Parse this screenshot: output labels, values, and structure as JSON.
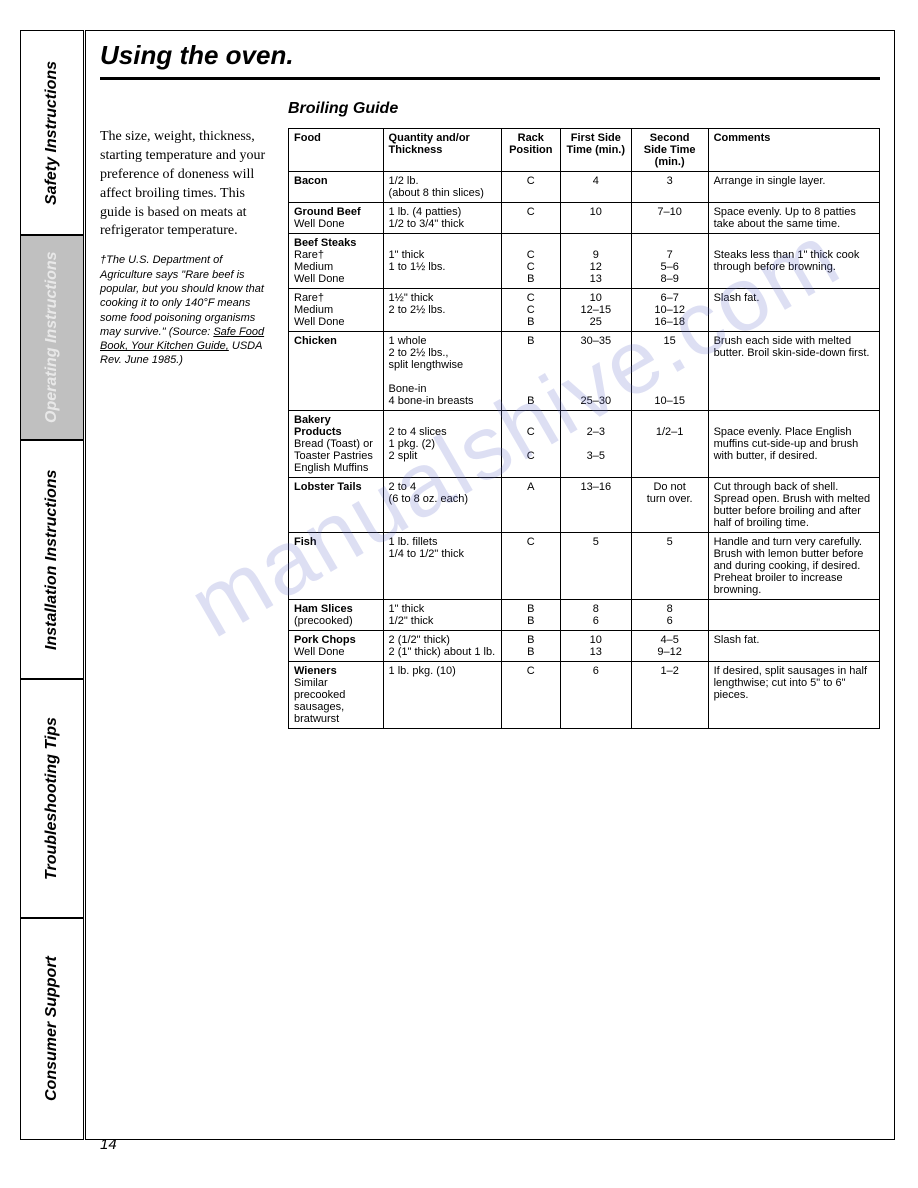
{
  "sideTabs": {
    "safety": "Safety Instructions",
    "operating": "Operating Instructions",
    "installation": "Installation Instructions",
    "troubleshooting": "Troubleshooting Tips",
    "consumer": "Consumer Support"
  },
  "title": "Using the oven.",
  "subheading": "Broiling Guide",
  "introText": "The size, weight, thickness, starting temperature and your preference of doneness will affect broiling times. This guide is based on meats at refrigerator temperature.",
  "footnotePrefix": "†The U.S. Department of Agriculture says \"Rare beef is popular, but you should know that cooking it to only 140°F means some food poisoning organisms may survive.\" (Source: ",
  "footnoteUnderline": "Safe Food Book, Your Kitchen Guide,",
  "footnoteSuffix": " USDA Rev. June 1985.)",
  "tableHeaders": {
    "food": "Food",
    "qty": "Quantity and/or Thickness",
    "rack": "Rack Position",
    "first": "First Side Time (min.)",
    "second": "Second Side Time (min.)",
    "comments": "Comments"
  },
  "rows": [
    {
      "food": "<span class='b'>Bacon</span>",
      "qty": "1/2 lb.<br>(about 8 thin slices)",
      "rack": "C",
      "first": "4",
      "second": "3",
      "comments": "Arrange in single layer."
    },
    {
      "food": "<span class='b'>Ground Beef</span><br>Well Done",
      "qty": "1 lb. (4 patties)<br>1/2 to 3/4\" thick",
      "rack": "C",
      "first": "10",
      "second": "7–10",
      "comments": "Space evenly. Up to 8 patties take about the same time."
    },
    {
      "food": "<span class='b'>Beef Steaks</span><br>Rare†<br>Medium<br>Well Done",
      "qty": "<br>1\" thick<br>1 to 1½ lbs.",
      "rack": "<br>C<br>C<br>B",
      "first": "<br>9<br>12<br>13",
      "second": "<br>7<br>5–6<br>8–9",
      "comments": "<br>Steaks less than 1\" thick cook through before browning."
    },
    {
      "food": "Rare†<br>Medium<br>Well Done",
      "qty": "1½\" thick<br>2 to 2½ lbs.",
      "rack": "C<br>C<br>B",
      "first": "10<br>12–15<br>25",
      "second": "6–7<br>10–12<br>16–18",
      "comments": "Slash fat."
    },
    {
      "food": "<span class='b'>Chicken</span>",
      "qty": "1 whole<br>2 to 2½ lbs.,<br>split lengthwise<br><br>Bone-in<br>4 bone-in breasts",
      "rack": "B<br><br><br><br><br>B",
      "first": "30–35<br><br><br><br><br>25–30",
      "second": "15<br><br><br><br><br>10–15",
      "comments": "Brush each side with melted butter. Broil skin-side-down first."
    },
    {
      "food": "<span class='b'>Bakery Products</span><br>Bread (Toast) or<br>Toaster Pastries<br>English Muffins",
      "qty": "<br>2 to 4 slices<br>1 pkg. (2)<br>2 split",
      "rack": "<br>C<br><br>C",
      "first": "<br>2–3<br><br>3–5",
      "second": "<br>1/2–1",
      "comments": "<br>Space evenly. Place English muffins cut-side-up and brush with butter, if desired."
    },
    {
      "food": "<span class='b'>Lobster Tails</span>",
      "qty": "2 to 4<br>(6 to 8 oz. each)",
      "rack": "A",
      "first": "13–16",
      "second": "Do not<br>turn over.",
      "comments": "Cut through back of shell. Spread open. Brush with melted butter before broiling and after half of broiling time."
    },
    {
      "food": "<span class='b'>Fish</span>",
      "qty": "1 lb. fillets<br>1/4 to 1/2\" thick",
      "rack": "C",
      "first": "5",
      "second": "5",
      "comments": "Handle and turn very carefully. Brush with lemon butter before and during cooking, if desired. Preheat broiler to increase browning."
    },
    {
      "food": "<span class='b'>Ham Slices</span><br>(precooked)",
      "qty": "1\" thick<br>1/2\" thick",
      "rack": "B<br>B",
      "first": "8<br>6",
      "second": "8<br>6",
      "comments": ""
    },
    {
      "food": "<span class='b'>Pork Chops</span><br>Well Done",
      "qty": "2 (1/2\" thick)<br>2 (1\" thick) about 1 lb.",
      "rack": "B<br>B",
      "first": "10<br>13",
      "second": "4–5<br>9–12",
      "comments": "Slash fat."
    },
    {
      "food": "<span class='b'>Wieners</span><br>Similar precooked<br>sausages,<br>bratwurst",
      "qty": "1 lb. pkg. (10)",
      "rack": "C",
      "first": "6",
      "second": "1–2",
      "comments": "If desired, split sausages in half lengthwise; cut into 5\" to 6\" pieces."
    }
  ],
  "pageNumber": "14",
  "watermark": "manualshive.com"
}
